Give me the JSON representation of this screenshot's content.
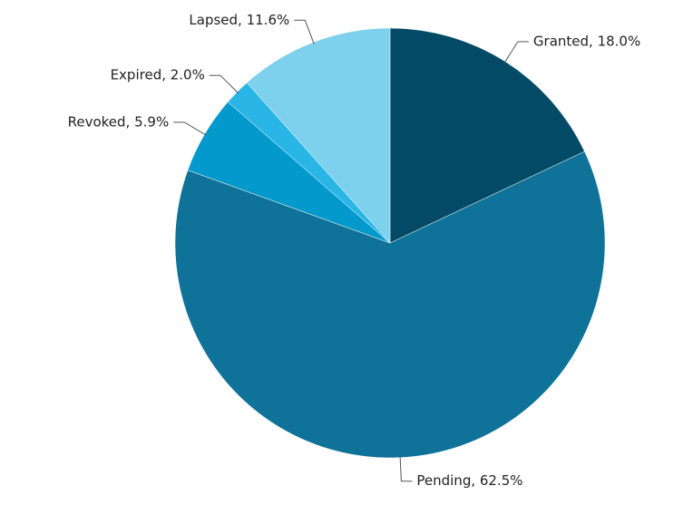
{
  "chart_data": {
    "type": "pie",
    "values": [
      18.0,
      62.5,
      5.9,
      2.0,
      11.6
    ],
    "value_labels": [
      "Granted, 18.0%",
      "Pending, 62.5%",
      "Revoked, 5.9%",
      "Expired, 2.0%",
      "Lapsed, 11.6%"
    ],
    "colors": [
      "#034a66",
      "#0f7299",
      "#0499cc",
      "#29b6e6",
      "#7dd1ec"
    ]
  }
}
